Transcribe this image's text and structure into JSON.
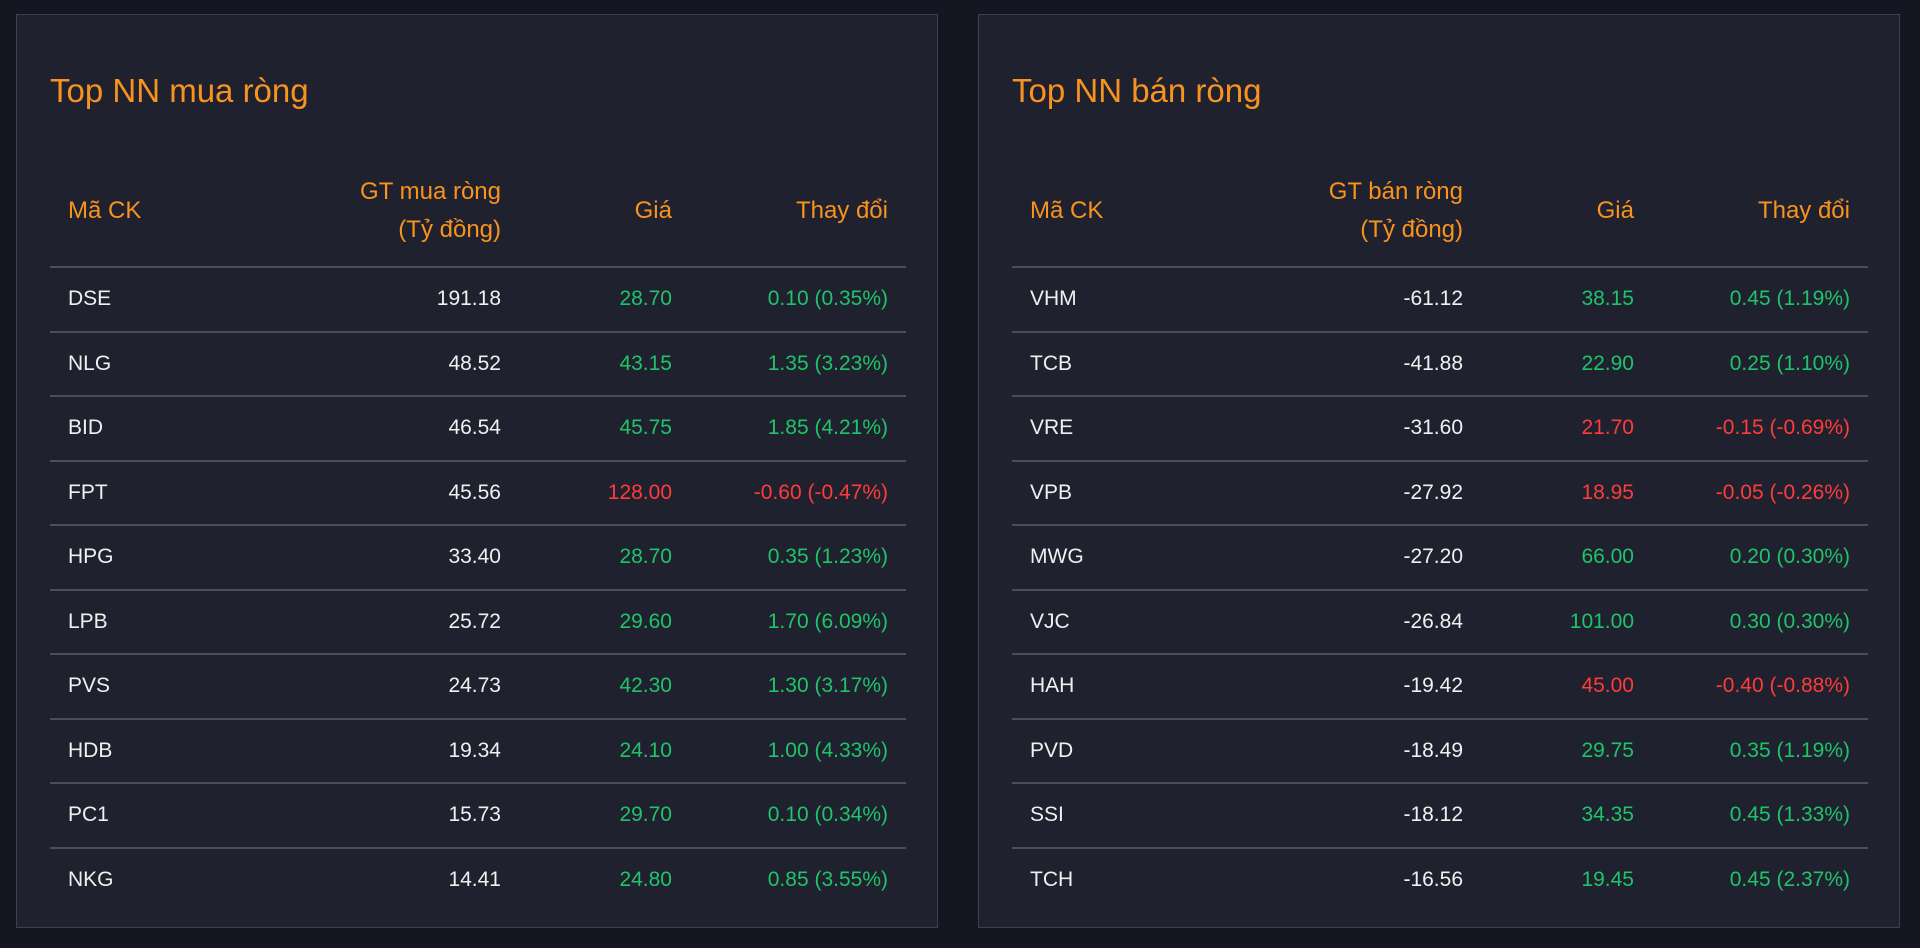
{
  "colors": {
    "up": "#1fc46a",
    "down": "#ff3b3b",
    "accent": "#f7931e"
  },
  "panels": [
    {
      "title": "Top NN mua ròng",
      "headers": {
        "code": "Mã CK",
        "value_line1": "GT mua ròng",
        "value_line2": "(Tỷ đồng)",
        "price": "Giá",
        "change": "Thay đổi"
      },
      "rows": [
        {
          "code": "DSE",
          "value": "191.18",
          "price": "28.70",
          "change": "0.10 (0.35%)",
          "trend": "up"
        },
        {
          "code": "NLG",
          "value": "48.52",
          "price": "43.15",
          "change": "1.35 (3.23%)",
          "trend": "up"
        },
        {
          "code": "BID",
          "value": "46.54",
          "price": "45.75",
          "change": "1.85 (4.21%)",
          "trend": "up"
        },
        {
          "code": "FPT",
          "value": "45.56",
          "price": "128.00",
          "change": "-0.60 (-0.47%)",
          "trend": "down"
        },
        {
          "code": "HPG",
          "value": "33.40",
          "price": "28.70",
          "change": "0.35 (1.23%)",
          "trend": "up"
        },
        {
          "code": "LPB",
          "value": "25.72",
          "price": "29.60",
          "change": "1.70 (6.09%)",
          "trend": "up"
        },
        {
          "code": "PVS",
          "value": "24.73",
          "price": "42.30",
          "change": "1.30 (3.17%)",
          "trend": "up"
        },
        {
          "code": "HDB",
          "value": "19.34",
          "price": "24.10",
          "change": "1.00 (4.33%)",
          "trend": "up"
        },
        {
          "code": "PC1",
          "value": "15.73",
          "price": "29.70",
          "change": "0.10 (0.34%)",
          "trend": "up"
        },
        {
          "code": "NKG",
          "value": "14.41",
          "price": "24.80",
          "change": "0.85 (3.55%)",
          "trend": "up"
        }
      ]
    },
    {
      "title": "Top NN bán ròng",
      "headers": {
        "code": "Mã CK",
        "value_line1": "GT bán ròng",
        "value_line2": "(Tỷ đồng)",
        "price": "Giá",
        "change": "Thay đổi"
      },
      "rows": [
        {
          "code": "VHM",
          "value": "-61.12",
          "price": "38.15",
          "change": "0.45 (1.19%)",
          "trend": "up"
        },
        {
          "code": "TCB",
          "value": "-41.88",
          "price": "22.90",
          "change": "0.25 (1.10%)",
          "trend": "up"
        },
        {
          "code": "VRE",
          "value": "-31.60",
          "price": "21.70",
          "change": "-0.15 (-0.69%)",
          "trend": "down"
        },
        {
          "code": "VPB",
          "value": "-27.92",
          "price": "18.95",
          "change": "-0.05 (-0.26%)",
          "trend": "down"
        },
        {
          "code": "MWG",
          "value": "-27.20",
          "price": "66.00",
          "change": "0.20 (0.30%)",
          "trend": "up"
        },
        {
          "code": "VJC",
          "value": "-26.84",
          "price": "101.00",
          "change": "0.30 (0.30%)",
          "trend": "up"
        },
        {
          "code": "HAH",
          "value": "-19.42",
          "price": "45.00",
          "change": "-0.40 (-0.88%)",
          "trend": "down"
        },
        {
          "code": "PVD",
          "value": "-18.49",
          "price": "29.75",
          "change": "0.35 (1.19%)",
          "trend": "up"
        },
        {
          "code": "SSI",
          "value": "-18.12",
          "price": "34.35",
          "change": "0.45 (1.33%)",
          "trend": "up"
        },
        {
          "code": "TCH",
          "value": "-16.56",
          "price": "19.45",
          "change": "0.45 (2.37%)",
          "trend": "up"
        }
      ]
    }
  ]
}
